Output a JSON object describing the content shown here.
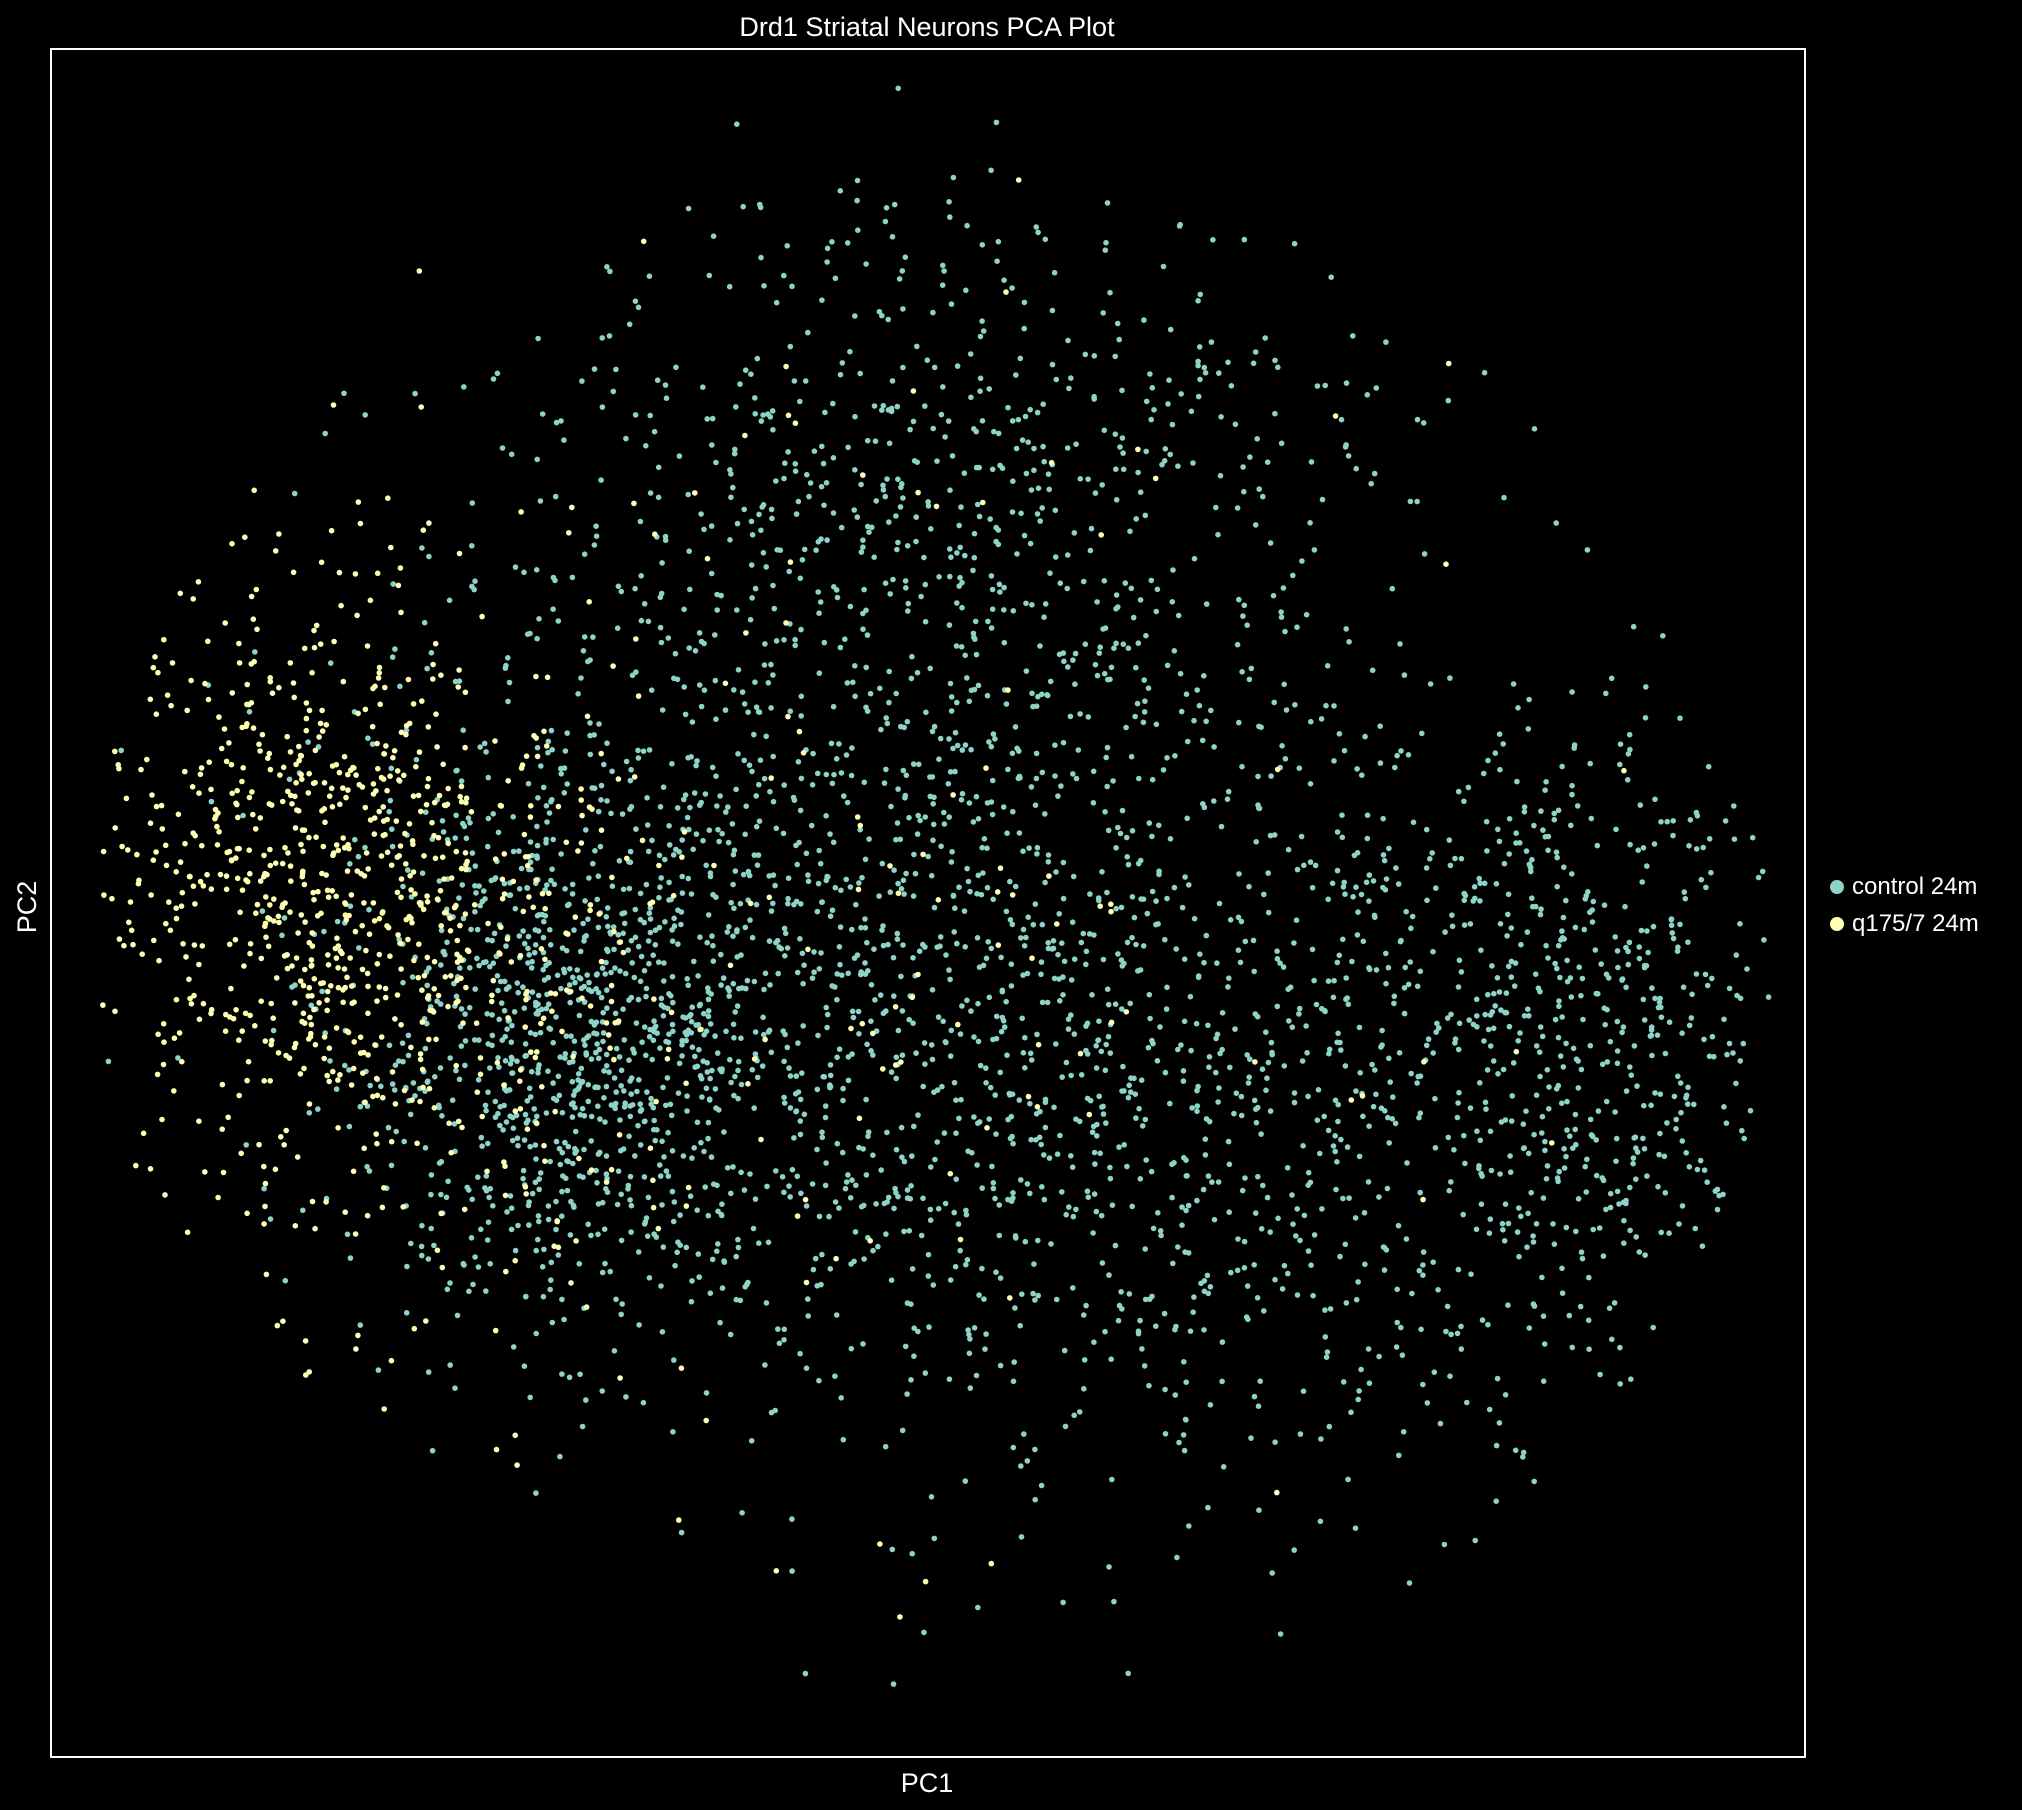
{
  "chart_data": {
    "type": "scatter",
    "title": "Drd1 Striatal Neurons PCA Plot",
    "xlabel": "PC1",
    "ylabel": "PC2",
    "xlim": [
      0,
      100
    ],
    "ylim": [
      0,
      100
    ],
    "grid": false,
    "axis_ticks": false,
    "legend_position": "right",
    "series": [
      {
        "name": "control 24m",
        "color": "#8dd3c7",
        "clusters": [
          {
            "cx": 30,
            "cy": 42,
            "sx": 7,
            "sy": 8,
            "n": 900
          },
          {
            "cx": 47,
            "cy": 55,
            "sx": 14,
            "sy": 15,
            "n": 1200
          },
          {
            "cx": 64,
            "cy": 38,
            "sx": 16,
            "sy": 12,
            "n": 900
          },
          {
            "cx": 86,
            "cy": 42,
            "sx": 7,
            "sy": 10,
            "n": 500
          },
          {
            "cx": 53,
            "cy": 78,
            "sx": 12,
            "sy": 7,
            "n": 300
          }
        ],
        "points": [
          [
            39.1,
            95.6
          ],
          [
            53.9,
            95.7
          ],
          [
            53.6,
            92.9
          ],
          [
            48.3,
            97.7
          ],
          [
            70.9,
            88.6
          ],
          [
            45.0,
            91.7
          ],
          [
            49.1,
            11.9
          ],
          [
            70.1,
            7.2
          ],
          [
            60.6,
            9.1
          ],
          [
            39.4,
            14.3
          ],
          [
            95.7,
            45.0
          ],
          [
            94.8,
            41.0
          ]
        ]
      },
      {
        "name": "q175/7 24m",
        "color": "#ffffb3",
        "clusters": [
          {
            "cx": 14,
            "cy": 52,
            "sx": 5.5,
            "sy": 9,
            "n": 600
          },
          {
            "cx": 24,
            "cy": 46,
            "sx": 7,
            "sy": 10,
            "n": 250
          },
          {
            "cx": 42,
            "cy": 48,
            "sx": 16,
            "sy": 16,
            "n": 150
          }
        ],
        "points": [
          [
            4.6,
            48.4
          ],
          [
            5.2,
            47.0
          ],
          [
            7.0,
            39.0
          ],
          [
            16.0,
            71.8
          ],
          [
            19.2,
            73.7
          ],
          [
            26.8,
            72.9
          ],
          [
            21.0,
            87.0
          ],
          [
            48.4,
            8.2
          ],
          [
            25.4,
            18.0
          ]
        ]
      }
    ]
  }
}
